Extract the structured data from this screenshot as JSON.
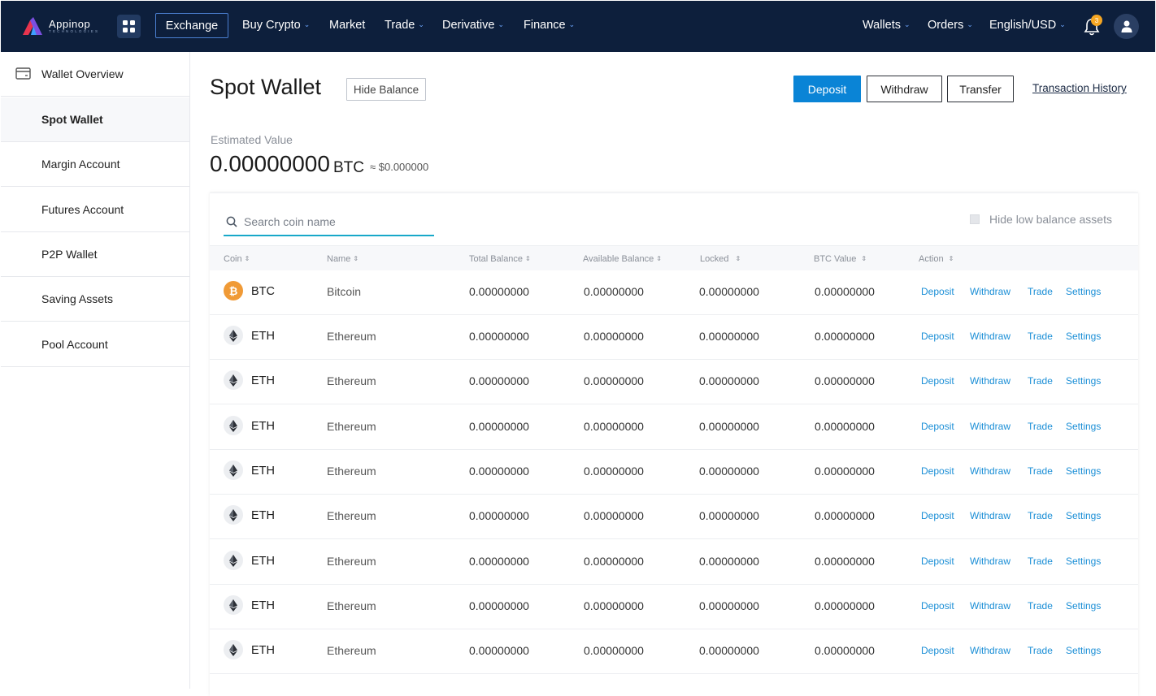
{
  "brand": {
    "name": "Appinop",
    "tagline": "TECHNOLOGIES"
  },
  "topnav": {
    "exchange": "Exchange",
    "items": [
      {
        "label": "Buy Crypto",
        "dropdown": true
      },
      {
        "label": "Market",
        "dropdown": false
      },
      {
        "label": "Trade",
        "dropdown": true
      },
      {
        "label": "Derivative",
        "dropdown": true
      },
      {
        "label": "Finance",
        "dropdown": true
      }
    ],
    "right": [
      {
        "label": "Wallets",
        "dropdown": true
      },
      {
        "label": "Orders",
        "dropdown": true
      },
      {
        "label": "English/USD",
        "dropdown": true
      }
    ],
    "notification_count": "3"
  },
  "sidebar": {
    "items": [
      {
        "label": "Wallet Overview",
        "icon": "wallet-icon"
      },
      {
        "label": "Spot Wallet",
        "active": true
      },
      {
        "label": "Margin Account"
      },
      {
        "label": "Futures Account"
      },
      {
        "label": "P2P Wallet"
      },
      {
        "label": "Saving Assets"
      },
      {
        "label": "Pool Account"
      }
    ]
  },
  "page": {
    "title": "Spot Wallet",
    "hide_balance": "Hide Balance",
    "deposit": "Deposit",
    "withdraw": "Withdraw",
    "transfer": "Transfer",
    "transaction_history": "Transaction History",
    "estimated_label": "Estimated Value",
    "estimated_value": "0.00000000",
    "estimated_unit": "BTC",
    "estimated_usd": "≈ $0.000000"
  },
  "assets": {
    "search_placeholder": "Search coin name",
    "hide_low_label": "Hide low balance assets",
    "columns": [
      "Coin",
      "Name",
      "Total Balance",
      "Available Balance",
      "Locked",
      "BTC Value",
      "Action"
    ],
    "actions": [
      "Deposit",
      "Withdraw",
      "Trade",
      "Settings"
    ],
    "rows": [
      {
        "symbol": "BTC",
        "name": "Bitcoin",
        "icon": "bitcoin-icon",
        "total": "0.00000000",
        "available": "0.00000000",
        "locked": "0.00000000",
        "btc_value": "0.00000000"
      },
      {
        "symbol": "ETH",
        "name": "Ethereum",
        "icon": "ethereum-icon",
        "total": "0.00000000",
        "available": "0.00000000",
        "locked": "0.00000000",
        "btc_value": "0.00000000"
      },
      {
        "symbol": "ETH",
        "name": "Ethereum",
        "icon": "ethereum-icon",
        "total": "0.00000000",
        "available": "0.00000000",
        "locked": "0.00000000",
        "btc_value": "0.00000000"
      },
      {
        "symbol": "ETH",
        "name": "Ethereum",
        "icon": "ethereum-icon",
        "total": "0.00000000",
        "available": "0.00000000",
        "locked": "0.00000000",
        "btc_value": "0.00000000"
      },
      {
        "symbol": "ETH",
        "name": "Ethereum",
        "icon": "ethereum-icon",
        "total": "0.00000000",
        "available": "0.00000000",
        "locked": "0.00000000",
        "btc_value": "0.00000000"
      },
      {
        "symbol": "ETH",
        "name": "Ethereum",
        "icon": "ethereum-icon",
        "total": "0.00000000",
        "available": "0.00000000",
        "locked": "0.00000000",
        "btc_value": "0.00000000"
      },
      {
        "symbol": "ETH",
        "name": "Ethereum",
        "icon": "ethereum-icon",
        "total": "0.00000000",
        "available": "0.00000000",
        "locked": "0.00000000",
        "btc_value": "0.00000000"
      },
      {
        "symbol": "ETH",
        "name": "Ethereum",
        "icon": "ethereum-icon",
        "total": "0.00000000",
        "available": "0.00000000",
        "locked": "0.00000000",
        "btc_value": "0.00000000"
      },
      {
        "symbol": "ETH",
        "name": "Ethereum",
        "icon": "ethereum-icon",
        "total": "0.00000000",
        "available": "0.00000000",
        "locked": "0.00000000",
        "btc_value": "0.00000000"
      }
    ]
  },
  "colors": {
    "navbar": "#0d1f3c",
    "accent": "#0a84d6",
    "link": "#1a8ed6",
    "search_underline": "#18a8c9",
    "btc": "#f09a36",
    "badge": "#f5a623"
  }
}
